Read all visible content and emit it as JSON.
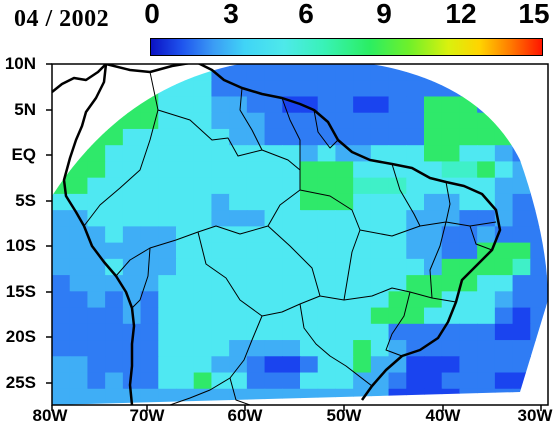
{
  "title": "04 / 2002",
  "colorbar": {
    "ticks": [
      "0",
      "3",
      "6",
      "9",
      "12",
      "15"
    ],
    "min": 0,
    "max": 15
  },
  "axes": {
    "lat_labels": [
      "10N",
      "5N",
      "EQ",
      "5S",
      "10S",
      "15S",
      "20S",
      "25S"
    ],
    "lon_labels": [
      "80W",
      "70W",
      "60W",
      "50W",
      "40W",
      "30W"
    ]
  },
  "colors": {
    "deep_blue": "#1a44ef",
    "blue": "#2f7cf4",
    "light_blue": "#3faef6",
    "cyan": "#4fe8f2",
    "aqua": "#3ff0c8",
    "green": "#2fe96a",
    "coast": "#000000"
  }
}
